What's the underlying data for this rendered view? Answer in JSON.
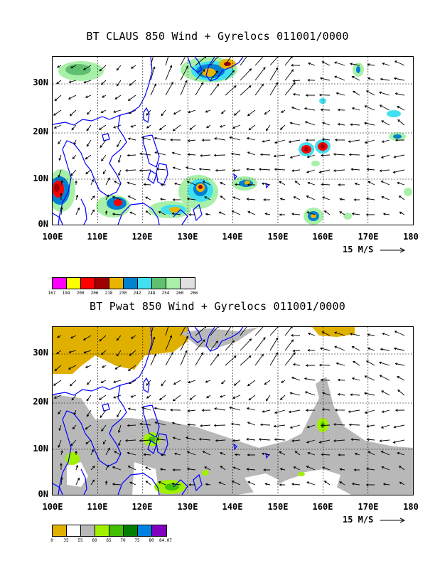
{
  "panels": [
    {
      "id": "claus",
      "title": "BT CLAUS 850 Wind + Gyrelocs 011001/0000",
      "ref_vector_label": "15 M/S",
      "y_ticks": [
        "30N",
        "20N",
        "10N",
        "0N"
      ],
      "x_ticks": [
        "100E",
        "110E",
        "120E",
        "130E",
        "140E",
        "150E",
        "160E",
        "170E",
        "180"
      ],
      "colorbar": {
        "colors": [
          "#ff00ff",
          "#ffff00",
          "#ff0000",
          "#a00000",
          "#e8b400",
          "#0080d0",
          "#40e0f0",
          "#60c070",
          "#a8f0a8",
          "#e0e0e0"
        ],
        "labels": [
          "167",
          "194",
          "200",
          "206",
          "218",
          "230",
          "242",
          "248",
          "254",
          "260",
          "266"
        ]
      }
    },
    {
      "id": "pwat",
      "title": "BT Pwat 850 Wind + Gyrelocs 011001/0000",
      "ref_vector_label": "15 M/S",
      "y_ticks": [
        "30N",
        "20N",
        "10N",
        "0N"
      ],
      "x_ticks": [
        "100E",
        "110E",
        "120E",
        "130E",
        "140E",
        "150E",
        "160E",
        "170E",
        "180"
      ],
      "colorbar": {
        "colors": [
          "#e0b000",
          "#ffffff",
          "#b8b8b8",
          "#a0f000",
          "#40c000",
          "#008000",
          "#0080e0",
          "#8000c0"
        ],
        "labels": [
          "0",
          "35",
          "55",
          "60",
          "65",
          "70",
          "75",
          "80",
          "84.07"
        ]
      }
    }
  ],
  "colors": {
    "coastline": "#0000ff",
    "arrows": "#000000",
    "grid": "#000000"
  }
}
